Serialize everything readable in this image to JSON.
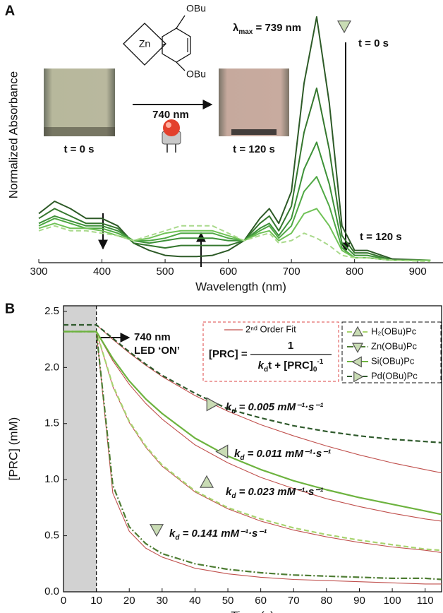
{
  "chart_data": [
    {
      "type": "line",
      "label": "A",
      "ylabel": "Normalized Absorbance",
      "xlabel": "Wavelength (nm)",
      "x": [
        300,
        325,
        350,
        375,
        400,
        425,
        450,
        475,
        500,
        525,
        550,
        575,
        600,
        625,
        650,
        665,
        680,
        700,
        720,
        740,
        760,
        780,
        800,
        820,
        860,
        920
      ],
      "xlim": [
        300,
        940
      ],
      "xticks": [
        300,
        400,
        500,
        600,
        700,
        800,
        900
      ],
      "ylim": [
        0,
        1.04
      ],
      "series": [
        {
          "color": "#2d5a27",
          "values": [
            0.2,
            0.25,
            0.22,
            0.18,
            0.18,
            0.15,
            0.08,
            0.05,
            0.03,
            0.025,
            0.025,
            0.03,
            0.05,
            0.09,
            0.18,
            0.22,
            0.16,
            0.29,
            0.73,
            1.0,
            0.65,
            0.15,
            0.05,
            0.05,
            0.015,
            0.01
          ]
        },
        {
          "color": "#35772e",
          "values": [
            0.18,
            0.22,
            0.19,
            0.16,
            0.16,
            0.14,
            0.08,
            0.07,
            0.06,
            0.07,
            0.07,
            0.07,
            0.07,
            0.09,
            0.16,
            0.19,
            0.13,
            0.23,
            0.53,
            0.71,
            0.46,
            0.11,
            0.04,
            0.04,
            0.01,
            0.01
          ]
        },
        {
          "color": "#3d9138",
          "values": [
            0.16,
            0.19,
            0.17,
            0.15,
            0.15,
            0.13,
            0.09,
            0.08,
            0.09,
            0.1,
            0.1,
            0.1,
            0.09,
            0.09,
            0.14,
            0.16,
            0.11,
            0.18,
            0.38,
            0.49,
            0.32,
            0.08,
            0.03,
            0.03,
            0.01,
            0.01
          ]
        },
        {
          "color": "#4fa844",
          "values": [
            0.15,
            0.18,
            0.16,
            0.14,
            0.14,
            0.12,
            0.09,
            0.09,
            0.1,
            0.12,
            0.12,
            0.12,
            0.1,
            0.09,
            0.13,
            0.15,
            0.1,
            0.15,
            0.29,
            0.35,
            0.23,
            0.06,
            0.02,
            0.02,
            0.01,
            0.01
          ]
        },
        {
          "color": "#70c257",
          "values": [
            0.14,
            0.16,
            0.14,
            0.14,
            0.13,
            0.11,
            0.09,
            0.1,
            0.12,
            0.13,
            0.13,
            0.13,
            0.11,
            0.09,
            0.12,
            0.13,
            0.09,
            0.12,
            0.2,
            0.22,
            0.15,
            0.05,
            0.02,
            0.02,
            0.01,
            0.01
          ]
        },
        {
          "color": "#a9d98b",
          "dash": "dashed",
          "values": [
            0.13,
            0.15,
            0.13,
            0.13,
            0.12,
            0.11,
            0.09,
            0.11,
            0.13,
            0.15,
            0.15,
            0.15,
            0.12,
            0.09,
            0.11,
            0.12,
            0.08,
            0.09,
            0.12,
            0.1,
            0.07,
            0.03,
            0.02,
            0.02,
            0.01,
            0.005
          ]
        }
      ],
      "annotations": {
        "lambda": "λ",
        "max": "max",
        "lambda_value": " = 739 nm",
        "start": "t = 0 s",
        "end": "t = 120 s",
        "photo_start": "t = 0 s",
        "photo_end": "t = 120 s",
        "excitation": "740 nm",
        "metal": "Zn",
        "substituent_top": "OBu",
        "substituent_bottom": "OBu"
      }
    },
    {
      "type": "line",
      "label": "B",
      "ylabel": "[PRC] (mM)",
      "xlabel": "Time (s)",
      "x": [
        0,
        10,
        15,
        20,
        25,
        30,
        40,
        50,
        60,
        70,
        80,
        90,
        100,
        110,
        115
      ],
      "xlim": [
        0,
        115
      ],
      "xticks": [
        0,
        10,
        20,
        30,
        40,
        50,
        60,
        70,
        80,
        90,
        100,
        110
      ],
      "ylim": [
        0,
        2.55
      ],
      "yticks": [
        {
          "value": 0,
          "label": "0.0"
        },
        0.5,
        {
          "value": 1,
          "label": "1.0"
        },
        1.5,
        {
          "value": 2,
          "label": "2.0"
        },
        2.5
      ],
      "shade_x": [
        0,
        10
      ],
      "series": [
        {
          "name": "2ⁿᵈ Order Fit",
          "color": "#c0504d",
          "values": [
            null,
            2.38,
            2.25,
            2.13,
            2.02,
            1.92,
            1.75,
            1.61,
            1.49,
            1.39,
            1.3,
            1.22,
            1.15,
            1.09,
            1.06
          ]
        },
        {
          "color": "#c0504d",
          "values": [
            null,
            2.32,
            2.06,
            1.85,
            1.68,
            1.54,
            1.31,
            1.15,
            1.02,
            0.92,
            0.83,
            0.76,
            0.7,
            0.65,
            0.63
          ]
        },
        {
          "color": "#c0504d",
          "values": [
            null,
            2.32,
            1.83,
            1.51,
            1.29,
            1.12,
            0.89,
            0.74,
            0.63,
            0.55,
            0.49,
            0.44,
            0.4,
            0.37,
            0.35
          ]
        },
        {
          "color": "#c0504d",
          "values": [
            null,
            2.32,
            0.88,
            0.54,
            0.39,
            0.31,
            0.21,
            0.16,
            0.13,
            0.11,
            0.1,
            0.09,
            0.08,
            0.07,
            0.07
          ]
        },
        {
          "name": "H₂(OBu)Pc",
          "color": "#a8d46f",
          "dash": "dashed",
          "marker": "up",
          "values": [
            2.32,
            2.32,
            1.84,
            1.52,
            1.3,
            1.13,
            0.9,
            0.75,
            0.65,
            0.57,
            0.51,
            0.46,
            0.42,
            0.38,
            0.37
          ]
        },
        {
          "name": "Zn(OBu)Pc",
          "color": "#4e7d33",
          "dash": "dash-dot",
          "marker": "down",
          "values": [
            2.32,
            2.32,
            0.95,
            0.58,
            0.43,
            0.34,
            0.25,
            0.2,
            0.17,
            0.15,
            0.14,
            0.13,
            0.12,
            0.12,
            0.11
          ]
        },
        {
          "name": "Si(OBu)Pc",
          "color": "#6db33f",
          "marker": "left",
          "values": [
            2.32,
            2.32,
            2.08,
            1.88,
            1.72,
            1.59,
            1.37,
            1.21,
            1.09,
            0.99,
            0.91,
            0.84,
            0.78,
            0.72,
            0.69
          ]
        },
        {
          "name": "Pd(OBu)Pc",
          "color": "#2f5a2c",
          "dash": "dashed",
          "marker": "right",
          "values": [
            2.38,
            2.38,
            2.26,
            2.14,
            2.03,
            1.93,
            1.77,
            1.63,
            1.55,
            1.48,
            1.43,
            1.39,
            1.36,
            1.34,
            1.33
          ]
        }
      ],
      "led": {
        "wavelength": "740 nm",
        "state": "LED ‘ON’"
      },
      "formula": {
        "lhs": "[PRC] =",
        "numerator": "1",
        "k": "k",
        "d": "d",
        "rest": "t + [PRC]",
        "zero": "0",
        "exp": "-1"
      },
      "rate_labels": [
        {
          "marker": "right",
          "symbol": "k",
          "subscript": "d",
          "text": " = 0.005 mM⁻¹·s⁻¹"
        },
        {
          "marker": "left",
          "symbol": "k",
          "subscript": "d",
          "text": " = 0.011 mM⁻¹·s⁻¹"
        },
        {
          "marker": "up",
          "symbol": "k",
          "subscript": "d",
          "text": " = 0.023 mM⁻¹·s⁻¹"
        },
        {
          "marker": "down",
          "symbol": "k",
          "subscript": "d",
          "text": " = 0.141 mM⁻¹·s⁻¹"
        }
      ]
    }
  ]
}
